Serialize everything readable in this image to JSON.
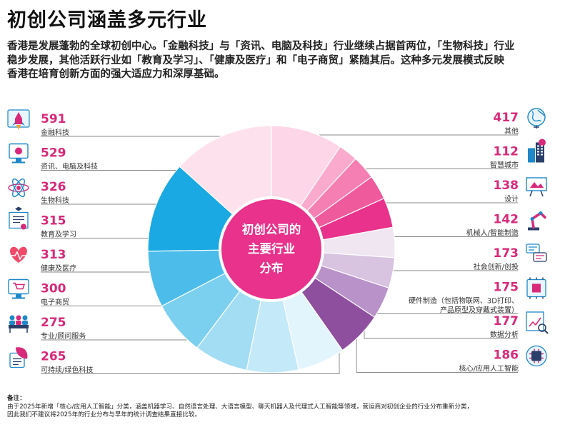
{
  "header": {
    "title": "初创公司涵盖多元行业",
    "intro_lines": [
      "香港是发展蓬勃的全球初创中心。「金融科技」与「资讯、电脑及科技」行业继续占据首两位，「生物科技」行业",
      "稳步发展，其他活跃行业如「教育及学习」、「健康及医疗」和「电子商贸」紧随其后。这种多元发展模式反映",
      "香港在培育创新方面的强大适应力和深厚基础。"
    ]
  },
  "chart_data": {
    "type": "pie",
    "variant": "donut",
    "title": "初创公司的主要行业分布",
    "center_label_lines": [
      "初创公司的",
      "主要行业",
      "分布"
    ],
    "segments": [
      {
        "name": "其他",
        "value": 417,
        "color": "#fdd6e8",
        "side": "right",
        "icon": "globe-icon"
      },
      {
        "name": "智慧城市",
        "value": 112,
        "color": "#f9aacd",
        "side": "right",
        "icon": "city-icon"
      },
      {
        "name": "设计",
        "value": 138,
        "color": "#f57fb3",
        "side": "right",
        "icon": "design-board-icon"
      },
      {
        "name": "机械人/智能制造",
        "value": 142,
        "color": "#ef5a9c",
        "side": "right",
        "icon": "robot-arm-icon"
      },
      {
        "name": "社会创新/创投",
        "value": 173,
        "color": "#e8328b",
        "side": "right",
        "icon": "chat-bubbles-icon"
      },
      {
        "name": "硬件制造（包括物联网、3D打印、产品原型及穿戴式装置）",
        "value": 175,
        "color": "#efe6f2",
        "side": "right",
        "icon": "hardware-box-icon",
        "label_lines": [
          "硬件制造（包括物联网、3D打印、",
          "产品原型及穿戴式装置）"
        ]
      },
      {
        "name": "数据分析",
        "value": 177,
        "color": "#d8c3e0",
        "side": "right",
        "icon": "data-analysis-icon"
      },
      {
        "name": "核心/应用人工智能",
        "value": 186,
        "color": "#b892c8",
        "side": "right",
        "icon": "ai-chip-icon"
      },
      {
        "name": "可持续/绿色科技",
        "value": 265,
        "color": "#8e4f9e",
        "side": "left",
        "icon": "sustainability-icon"
      },
      {
        "name": "专业/顾问服务",
        "value": 275,
        "color": "#e2f4fc",
        "side": "left",
        "icon": "meeting-icon"
      },
      {
        "name": "电子商贸",
        "value": 300,
        "color": "#c4e9f8",
        "side": "left",
        "icon": "ecommerce-icon"
      },
      {
        "name": "健康及医疗",
        "value": 313,
        "color": "#a2ddf4",
        "side": "left",
        "icon": "health-heart-icon"
      },
      {
        "name": "教育及学习",
        "value": 315,
        "color": "#7bcfef",
        "side": "left",
        "icon": "certificate-icon"
      },
      {
        "name": "生物科技",
        "value": 326,
        "color": "#4cbdea",
        "side": "left",
        "icon": "atom-icon"
      },
      {
        "name": "资讯、电脑及科技",
        "value": 529,
        "color": "#1aa9e2",
        "side": "left",
        "icon": "computer-icon"
      },
      {
        "name": "金融科技",
        "value": 591,
        "color": "#fde2ee",
        "side": "left",
        "icon": "rocket-icon"
      }
    ]
  },
  "notes": {
    "heading": "备注：",
    "lines": [
      "由于2025年新增「核心/应用人工智能」分类，涵盖机器学习、自然语言处理、大语言模型、聊天机器人及代理式人工智能等领域，营运商对初创企业的行业分布重新分类，",
      "因此我们不建议将2025年的行业分布与早年的统计调查结果直接比较。"
    ]
  },
  "colors": {
    "accent": "#d8297a",
    "center": "#e8328b"
  }
}
